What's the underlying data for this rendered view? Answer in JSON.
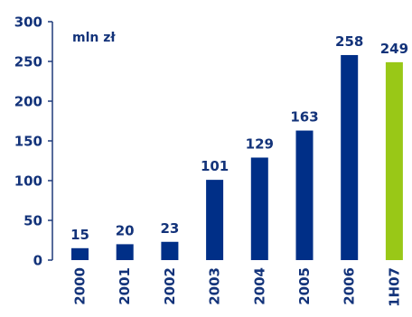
{
  "chart_data": {
    "type": "bar",
    "title": "",
    "xlabel": "",
    "ylabel": "mln zł",
    "ylim": [
      0,
      300
    ],
    "yticks": [
      0,
      50,
      100,
      150,
      200,
      250,
      300
    ],
    "grid": false,
    "legend": "none",
    "categories": [
      "2000",
      "2001",
      "2002",
      "2003",
      "2004",
      "2005",
      "2006",
      "1H07"
    ],
    "values": [
      15,
      20,
      23,
      101,
      129,
      163,
      258,
      249
    ],
    "data_labels": [
      "15",
      "20",
      "23",
      "101",
      "129",
      "163",
      "258",
      "249"
    ],
    "colors": {
      "bar": "#002f87",
      "highlight": "#99c817",
      "text": "#13337a",
      "axis": "#1f3a7a"
    },
    "highlight_index": 7
  }
}
